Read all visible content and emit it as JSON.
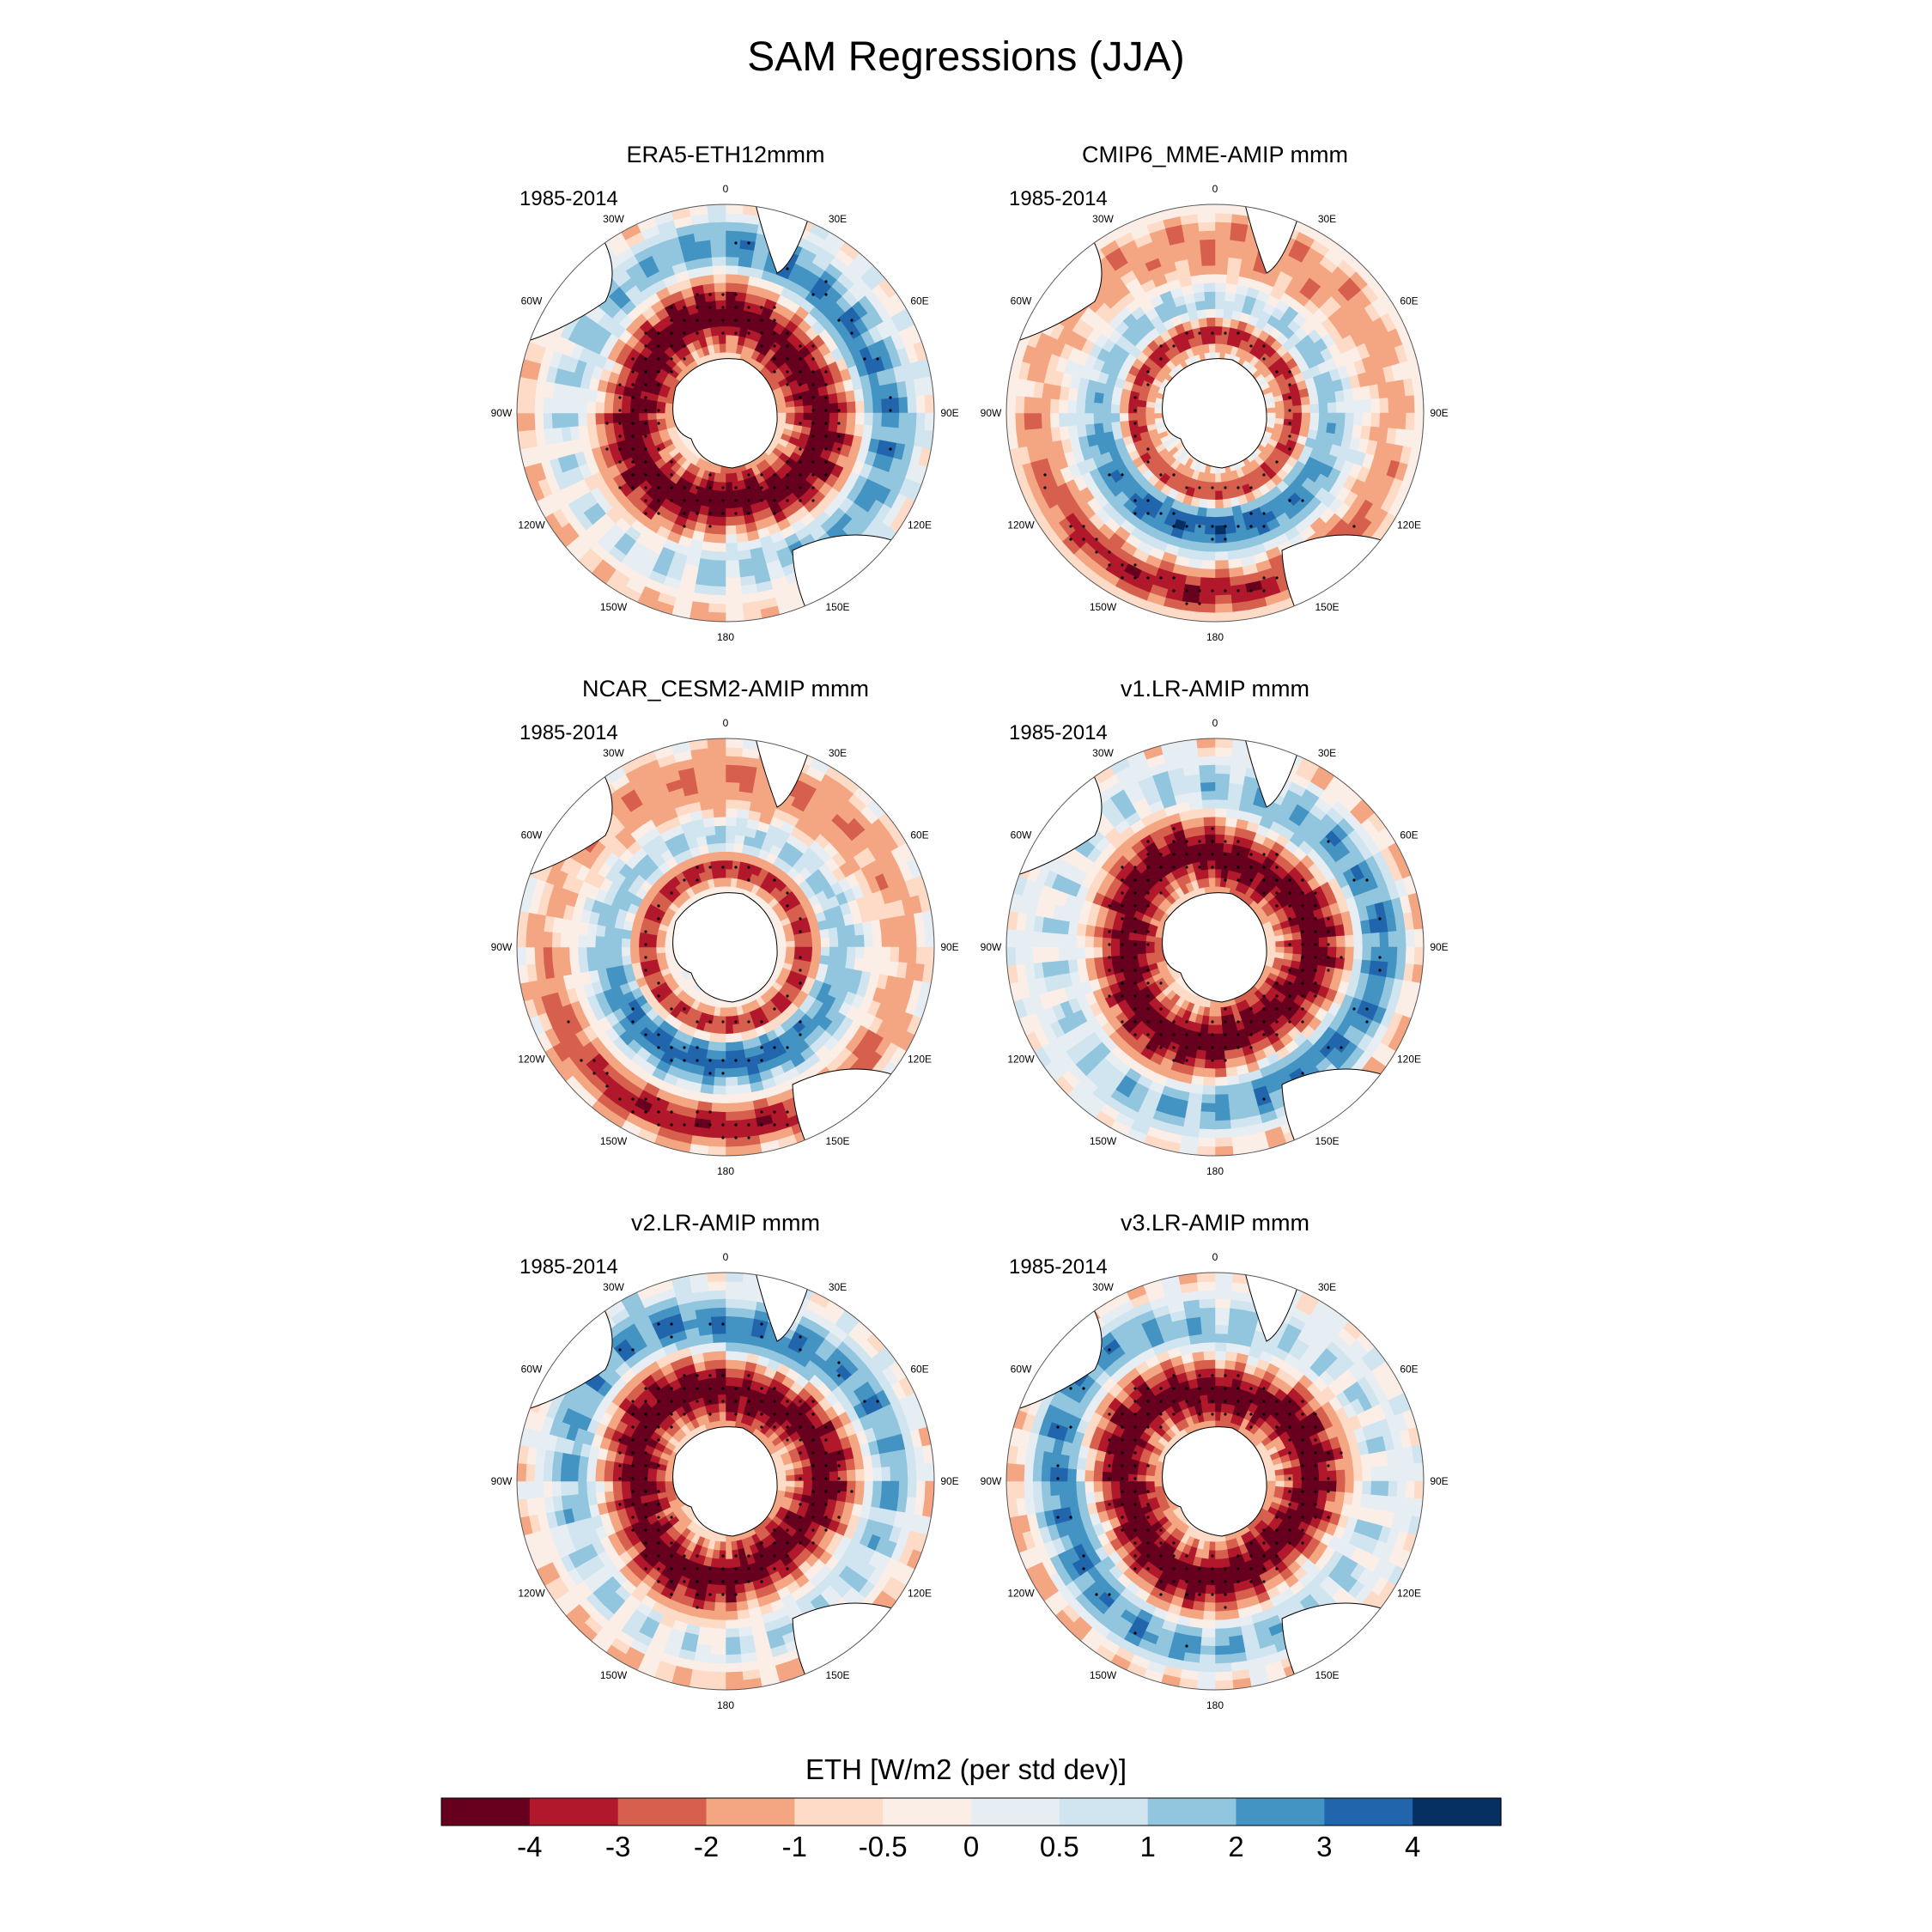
{
  "figure": {
    "title": "SAM Regressions (JJA)",
    "period_label": "1985-2014"
  },
  "panels": [
    {
      "title": "ERA5-ETH12mmm",
      "pattern": "negative-ring"
    },
    {
      "title": "CMIP6_MME-AMIP  mmm",
      "pattern": "dipole"
    },
    {
      "title": "NCAR_CESM2-AMIP  mmm",
      "pattern": "dipole"
    },
    {
      "title": "v1.LR-AMIP  mmm",
      "pattern": "negative-ring"
    },
    {
      "title": "v2.LR-AMIP  mmm",
      "pattern": "negative-ring"
    },
    {
      "title": "v3.LR-AMIP  mmm",
      "pattern": "negative-ring"
    }
  ],
  "longitude_labels": {
    "0": "0",
    "30": "30E",
    "60": "60E",
    "90": "90E",
    "120": "120E",
    "150": "150E",
    "180": "180",
    "-150": "150W",
    "-120": "120W",
    "-90": "90W",
    "-60": "60W",
    "-30": "30W"
  },
  "colorbar": {
    "label": "ETH [W/m2 (per std dev)]",
    "tick_labels": [
      "-4",
      "-3",
      "-2",
      "-1",
      "-0.5",
      "0",
      "0.5",
      "1",
      "2",
      "3",
      "4"
    ],
    "levels": [
      -4,
      -3,
      -2,
      -1,
      -0.5,
      0,
      0.5,
      1,
      2,
      3,
      4
    ],
    "colors": [
      "#67001f",
      "#b2182b",
      "#d6604d",
      "#f4a582",
      "#fddbc7",
      "#fbeee6",
      "#e6eef3",
      "#d1e5f0",
      "#92c5de",
      "#4393c3",
      "#2166ac",
      "#053061"
    ]
  }
}
